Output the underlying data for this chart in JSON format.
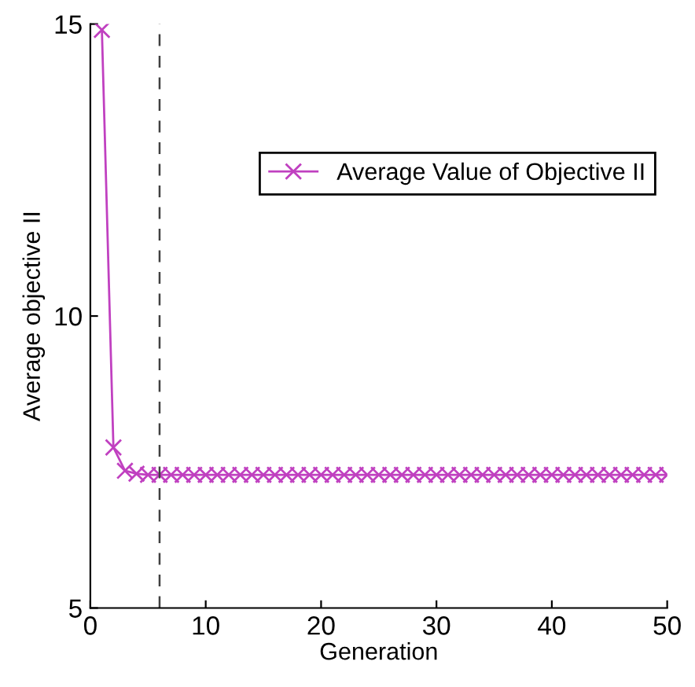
{
  "chart_data": {
    "type": "line",
    "xlabel": "Generation",
    "ylabel": "Average objective II",
    "x": [
      1,
      2,
      3,
      4,
      5,
      6,
      7,
      8,
      9,
      10,
      11,
      12,
      13,
      14,
      15,
      16,
      17,
      18,
      19,
      20,
      21,
      22,
      23,
      24,
      25,
      26,
      27,
      28,
      29,
      30,
      31,
      32,
      33,
      34,
      35,
      36,
      37,
      38,
      39,
      40,
      41,
      42,
      43,
      44,
      45,
      46,
      47,
      48,
      49,
      50
    ],
    "series": [
      {
        "name": "Average Value of Objective II",
        "color": "#c040c0",
        "values": [
          14.9,
          7.75,
          7.35,
          7.3,
          7.28,
          7.28,
          7.28,
          7.28,
          7.28,
          7.28,
          7.28,
          7.28,
          7.28,
          7.28,
          7.28,
          7.28,
          7.28,
          7.28,
          7.28,
          7.28,
          7.28,
          7.28,
          7.28,
          7.28,
          7.28,
          7.28,
          7.28,
          7.28,
          7.28,
          7.28,
          7.28,
          7.28,
          7.28,
          7.28,
          7.28,
          7.28,
          7.28,
          7.28,
          7.28,
          7.28,
          7.28,
          7.28,
          7.28,
          7.28,
          7.28,
          7.28,
          7.28,
          7.28,
          7.28,
          7.28
        ]
      }
    ],
    "xlim": [
      0,
      50
    ],
    "ylim": [
      5,
      15
    ],
    "xticks": [
      0,
      10,
      20,
      30,
      40,
      50
    ],
    "yticks": [
      5,
      10,
      15
    ],
    "ref_lines": [
      {
        "axis": "x",
        "value": 6,
        "color": "#404040",
        "line_style": "dashed"
      }
    ],
    "marker": "cross",
    "line_style": "solid",
    "grid": false,
    "legend": "top right"
  }
}
